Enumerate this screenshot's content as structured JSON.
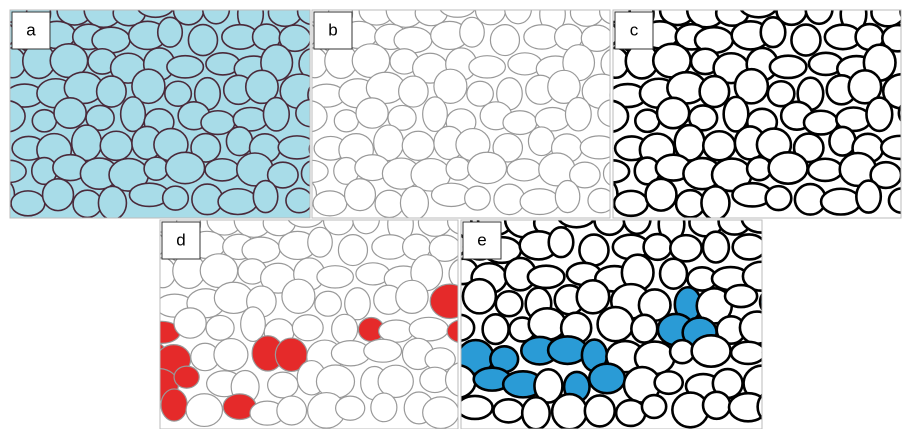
{
  "panels": {
    "labels": [
      "a",
      "b",
      "c",
      "d",
      "e"
    ]
  }
}
